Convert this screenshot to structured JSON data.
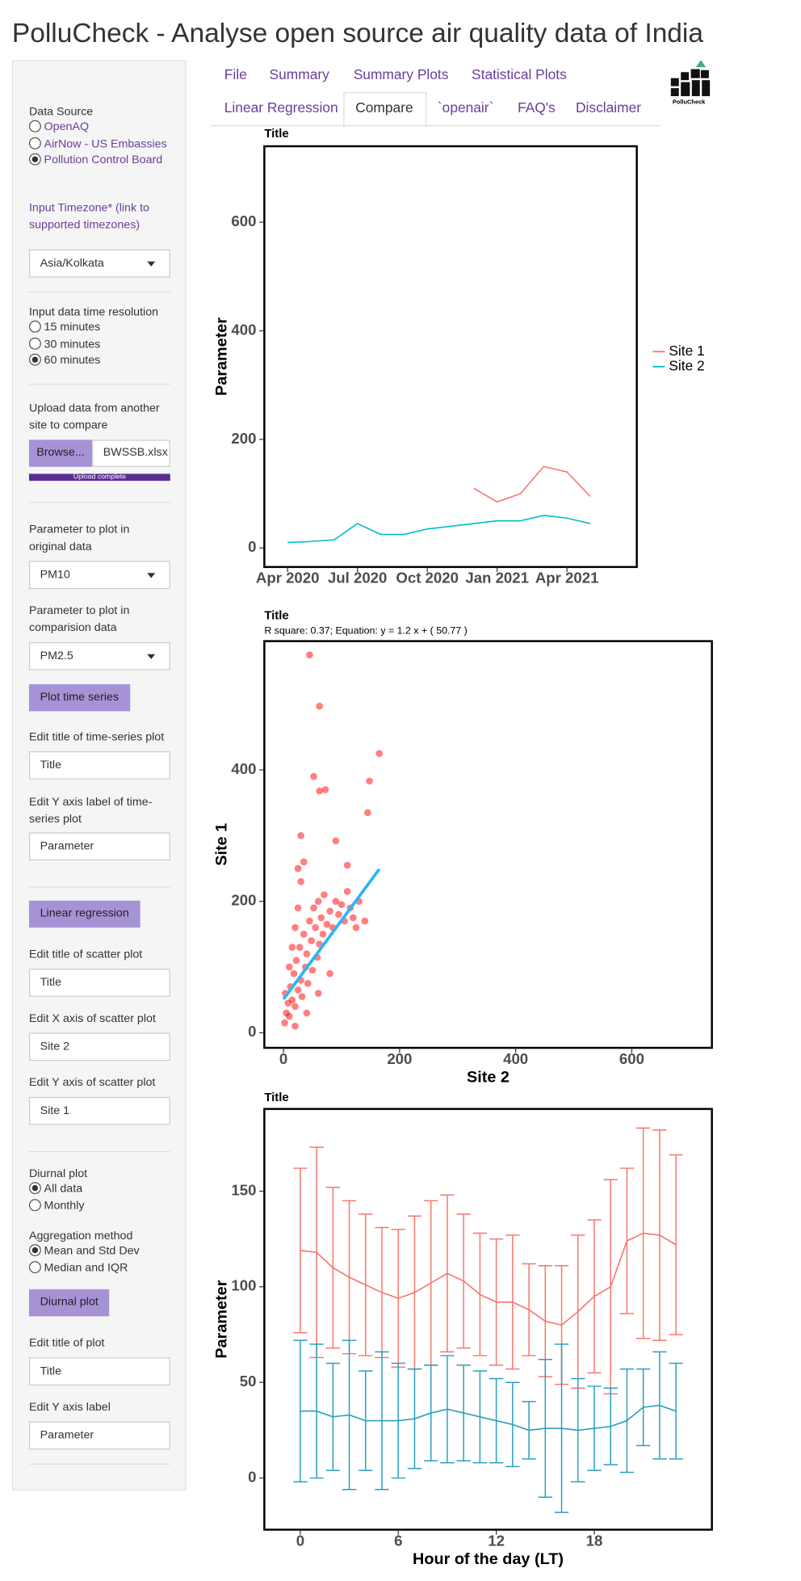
{
  "header": {
    "title": "PolluCheck - Analyse open source air quality data of India"
  },
  "nav": {
    "tabs": [
      "File",
      "Summary",
      "Summary Plots",
      "Statistical Plots",
      "Linear Regression",
      "Compare",
      "`openair`",
      "FAQ's",
      "Disclaimer"
    ],
    "active": 5,
    "logo": "PolluCheck"
  },
  "sidebar": {
    "data_source": {
      "label": "Data Source",
      "options": [
        "OpenAQ",
        "AirNow - US Embassies",
        "Pollution Control Board"
      ],
      "selected": 2
    },
    "timezone": {
      "label": "Input Timezone* (link to supported timezones)",
      "value": "Asia/Kolkata"
    },
    "resolution": {
      "label": "Input data time resolution",
      "options": [
        "15 minutes",
        "30 minutes",
        "60 minutes"
      ],
      "selected": 2
    },
    "upload": {
      "label": "Upload data from another site to compare",
      "button": "Browse...",
      "file": "BWSSB.xlsx",
      "status": "Upload complete"
    },
    "parameter_original": {
      "label": "Parameter to plot in original data",
      "value": "PM10"
    },
    "parameter_compare": {
      "label": "Parameter to plot in comparision data",
      "value": "PM2.5"
    },
    "plot_time_series": "Plot time series",
    "ts_title": {
      "label": "Edit title of time-series plot",
      "value": "Title"
    },
    "ts_ylabel": {
      "label": "Edit Y axis label of time-series plot",
      "value": "Parameter"
    },
    "linear_regression": "Linear regression",
    "scatter_title": {
      "label": "Edit title of scatter plot",
      "value": "Title"
    },
    "scatter_xlabel": {
      "label": "Edit X axis of scatter plot",
      "value": "Site 2"
    },
    "scatter_ylabel": {
      "label": "Edit Y axis of scatter plot",
      "value": "Site 1"
    },
    "diurnal": {
      "label": "Diurnal plot",
      "options": [
        "All data",
        "Monthly"
      ],
      "selected": 0
    },
    "aggregation": {
      "label": "Aggregation method",
      "options": [
        "Mean and Std Dev",
        "Median and IQR"
      ],
      "selected": 0
    },
    "diurnal_button": "Diurnal plot",
    "diurnal_title": {
      "label": "Edit title of plot",
      "value": "Title"
    },
    "diurnal_ylabel": {
      "label": "Edit Y axis label",
      "value": "Parameter"
    }
  },
  "chart_data": [
    {
      "type": "line",
      "title": "Title",
      "ylabel": "Parameter",
      "legend": "right",
      "x": [
        "2020-04",
        "2020-05",
        "2020-06",
        "2020-07",
        "2020-08",
        "2020-09",
        "2020-10",
        "2020-11",
        "2020-12",
        "2021-01",
        "2021-02",
        "2021-03",
        "2021-04",
        "2021-05"
      ],
      "series": [
        {
          "name": "Site 1",
          "color": "#F8766D",
          "values": [
            null,
            null,
            null,
            null,
            null,
            null,
            null,
            null,
            110,
            85,
            100,
            150,
            140,
            95
          ]
        },
        {
          "name": "Site 2",
          "color": "#00BFC4",
          "values": [
            10,
            12,
            15,
            45,
            25,
            25,
            35,
            40,
            45,
            50,
            50,
            60,
            55,
            45
          ]
        }
      ],
      "xlim": [
        "2020-03",
        "2021-07"
      ],
      "xticks": [
        {
          "value": "2020-04",
          "label": "Apr 2020"
        },
        {
          "value": "2020-07",
          "label": "Jul 2020"
        },
        {
          "value": "2020-10",
          "label": "Oct 2020"
        },
        {
          "value": "2021-01",
          "label": "Jan 2021"
        },
        {
          "value": "2021-04",
          "label": "Apr 2021"
        }
      ],
      "ylim": [
        -35,
        740
      ],
      "yticks": [
        0,
        200,
        400,
        600
      ]
    },
    {
      "type": "scatter",
      "title": "Title",
      "subtitle": "R square: 0.37; Equation: y =  1.2 x + ( 50.77 )",
      "xlabel": "Site 2",
      "ylabel": "Site 1",
      "series": [
        {
          "color": "#FF0000",
          "x": [
            2,
            5,
            8,
            3,
            10,
            12,
            15,
            18,
            20,
            22,
            25,
            28,
            30,
            32,
            35,
            38,
            40,
            42,
            45,
            48,
            50,
            52,
            55,
            58,
            60,
            62,
            65,
            68,
            70,
            75,
            80,
            85,
            90,
            95,
            100,
            105,
            110,
            115,
            120,
            125,
            130,
            10,
            15,
            20,
            25,
            30,
            35,
            20,
            40,
            60,
            80,
            45,
            62,
            165,
            52,
            148,
            72,
            62,
            145,
            90,
            110,
            140,
            30,
            25
          ],
          "y": [
            15,
            30,
            45,
            60,
            25,
            70,
            50,
            90,
            40,
            110,
            65,
            130,
            80,
            55,
            150,
            100,
            120,
            75,
            170,
            140,
            95,
            190,
            160,
            115,
            200,
            135,
            175,
            150,
            210,
            165,
            185,
            160,
            200,
            180,
            195,
            170,
            215,
            190,
            175,
            160,
            200,
            100,
            130,
            160,
            190,
            230,
            260,
            10,
            30,
            60,
            90,
            575,
            497,
            425,
            390,
            383,
            370,
            368,
            335,
            292,
            255,
            170,
            300,
            250
          ]
        }
      ],
      "fit": {
        "color": "#29B6F6",
        "x": [
          0,
          165
        ],
        "y": [
          51,
          249
        ]
      },
      "xlim": [
        -33,
        738
      ],
      "xticks": [
        0,
        200,
        400,
        600
      ],
      "ylim": [
        -23,
        596
      ],
      "yticks": [
        0,
        200,
        400
      ]
    },
    {
      "type": "line",
      "title": "Title",
      "xlabel": "Hour of the day (LT)",
      "ylabel": "Parameter",
      "x": [
        0,
        1,
        2,
        3,
        4,
        5,
        6,
        7,
        8,
        9,
        10,
        11,
        12,
        13,
        14,
        15,
        16,
        17,
        18,
        19,
        20,
        21,
        22,
        23
      ],
      "series": [
        {
          "color": "#F8766D",
          "values": [
            119,
            118,
            110,
            105,
            101,
            97,
            94,
            97,
            102,
            107,
            103,
            96,
            92,
            92,
            88,
            82,
            80,
            87,
            95,
            100,
            124,
            128,
            127,
            122
          ],
          "errors": [
            43,
            55,
            42,
            40,
            37,
            34,
            36,
            40,
            43,
            41,
            35,
            32,
            33,
            35,
            24,
            29,
            31,
            40,
            40,
            56,
            38,
            55,
            55,
            47
          ]
        },
        {
          "color": "#2A9FC0",
          "values": [
            35,
            35,
            32,
            33,
            30,
            30,
            30,
            31,
            34,
            36,
            34,
            32,
            30,
            28,
            25,
            26,
            26,
            25,
            26,
            27,
            30,
            37,
            38,
            35
          ],
          "errors": [
            37,
            35,
            28,
            39,
            26,
            36,
            30,
            26,
            25,
            28,
            25,
            24,
            22,
            22,
            15,
            36,
            44,
            27,
            22,
            20,
            27,
            20,
            28,
            25
          ]
        }
      ],
      "xlim": [
        -2.2,
        25.2
      ],
      "xticks": [
        0,
        6,
        12,
        18
      ],
      "ylim": [
        -27,
        193
      ],
      "yticks": [
        0,
        50,
        100,
        150
      ]
    }
  ]
}
